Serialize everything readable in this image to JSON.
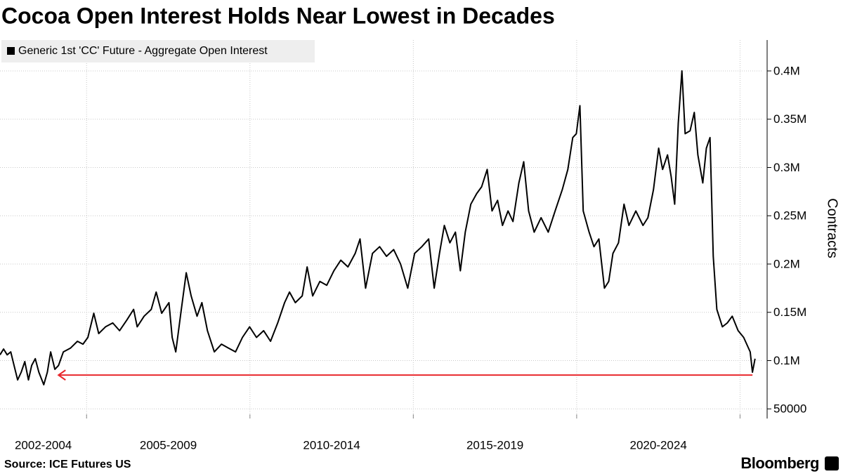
{
  "chart_data": {
    "type": "line",
    "title": "Cocoa Open Interest Holds Near Lowest in Decades",
    "y_label": "Contracts",
    "source": "Source: ICE Futures US",
    "brand": "Bloomberg",
    "series": [
      {
        "name": "Generic 1st 'CC' Future - Aggregate Open Interest",
        "color": "#000000",
        "values": [
          106000,
          112000,
          106000,
          109000,
          95000,
          80000,
          88000,
          99000,
          80000,
          95000,
          102000,
          88000,
          75000,
          88000,
          109000,
          91000,
          95000,
          109000,
          113000,
          120000,
          117000,
          124000,
          149000,
          128000,
          135000,
          139000,
          131000,
          142000,
          153000,
          135000,
          146000,
          153000,
          171000,
          149000,
          160000,
          124000,
          109000,
          153000,
          191000,
          167000,
          146000,
          160000,
          131000,
          109000,
          117000,
          113000,
          109000,
          124000,
          135000,
          124000,
          131000,
          120000,
          139000,
          160000,
          171000,
          160000,
          167000,
          197000,
          167000,
          182000,
          178000,
          193000,
          204000,
          197000,
          211000,
          226000,
          175000,
          211000,
          218000,
          208000,
          215000,
          200000,
          175000,
          211000,
          218000,
          226000,
          175000,
          211000,
          240000,
          222000,
          233000,
          193000,
          233000,
          262000,
          273000,
          280000,
          298000,
          255000,
          266000,
          240000,
          255000,
          244000,
          284000,
          306000,
          255000,
          233000,
          248000,
          233000,
          255000,
          277000,
          298000,
          331000,
          335000,
          364000,
          255000,
          233000,
          218000,
          226000,
          175000,
          182000,
          211000,
          222000,
          262000,
          240000,
          255000,
          240000,
          248000,
          277000,
          320000,
          298000,
          313000,
          291000,
          262000,
          346000,
          400000,
          335000,
          338000,
          357000,
          313000,
          284000,
          320000,
          331000,
          208000,
          153000,
          135000,
          139000,
          146000,
          131000,
          124000,
          109000,
          88000,
          102000
        ]
      }
    ],
    "x": [
      2002.35,
      2002.46,
      2002.57,
      2002.68,
      2002.78,
      2002.89,
      2003.0,
      2003.11,
      2003.22,
      2003.32,
      2003.43,
      2003.54,
      2003.69,
      2003.8,
      2003.9,
      2004.03,
      2004.14,
      2004.29,
      2004.51,
      2004.72,
      2004.89,
      2005.04,
      2005.22,
      2005.37,
      2005.58,
      2005.8,
      2006.01,
      2006.23,
      2006.44,
      2006.55,
      2006.76,
      2006.98,
      2007.13,
      2007.3,
      2007.52,
      2007.62,
      2007.73,
      2007.9,
      2008.05,
      2008.2,
      2008.38,
      2008.53,
      2008.7,
      2008.91,
      2009.13,
      2009.34,
      2009.56,
      2009.77,
      2009.99,
      2010.2,
      2010.42,
      2010.63,
      2010.85,
      2011.06,
      2011.21,
      2011.39,
      2011.6,
      2011.75,
      2011.92,
      2012.14,
      2012.35,
      2012.57,
      2012.78,
      2013.0,
      2013.22,
      2013.37,
      2013.54,
      2013.75,
      2013.97,
      2014.18,
      2014.4,
      2014.61,
      2014.83,
      2015.04,
      2015.26,
      2015.47,
      2015.64,
      2015.8,
      2015.95,
      2016.12,
      2016.29,
      2016.44,
      2016.59,
      2016.76,
      2016.94,
      2017.09,
      2017.26,
      2017.41,
      2017.58,
      2017.73,
      2017.9,
      2018.05,
      2018.23,
      2018.38,
      2018.53,
      2018.7,
      2018.91,
      2019.13,
      2019.34,
      2019.56,
      2019.73,
      2019.88,
      2019.99,
      2020.1,
      2020.2,
      2020.38,
      2020.53,
      2020.68,
      2020.85,
      2020.98,
      2021.11,
      2021.28,
      2021.45,
      2021.6,
      2021.81,
      2022.03,
      2022.18,
      2022.35,
      2022.51,
      2022.63,
      2022.78,
      2022.89,
      2023.0,
      2023.11,
      2023.22,
      2023.32,
      2023.47,
      2023.6,
      2023.71,
      2023.86,
      2023.97,
      2024.08,
      2024.18,
      2024.29,
      2024.46,
      2024.61,
      2024.76,
      2024.94,
      2025.11,
      2025.31,
      2025.38,
      2025.46
    ],
    "xlim": [
      2002.35,
      2025.7
    ],
    "periods": [
      {
        "label": "2002-2004",
        "start": 2002.35,
        "end": 2005
      },
      {
        "label": "2005-2009",
        "start": 2005,
        "end": 2010
      },
      {
        "label": "2010-2014",
        "start": 2010,
        "end": 2015
      },
      {
        "label": "2015-2019",
        "start": 2015,
        "end": 2020
      },
      {
        "label": "2020-2024",
        "start": 2020,
        "end": 2025
      }
    ],
    "ylim": [
      40000,
      432000
    ],
    "yticks": [
      50000,
      {
        "value": 100000,
        "label": "0.1M"
      },
      {
        "value": 150000,
        "label": "0.15M"
      },
      {
        "value": 200000,
        "label": "0.2M"
      },
      {
        "value": 250000,
        "label": "0.25M"
      },
      {
        "value": 300000,
        "label": "0.3M"
      },
      {
        "value": 350000,
        "label": "0.35M"
      },
      {
        "value": 400000,
        "label": "0.4M"
      }
    ],
    "grid": true,
    "legend": "top-left",
    "reference_line": {
      "value": 85000,
      "x": [
        2004.14,
        2025.38
      ],
      "color": "#e8272c"
    }
  }
}
